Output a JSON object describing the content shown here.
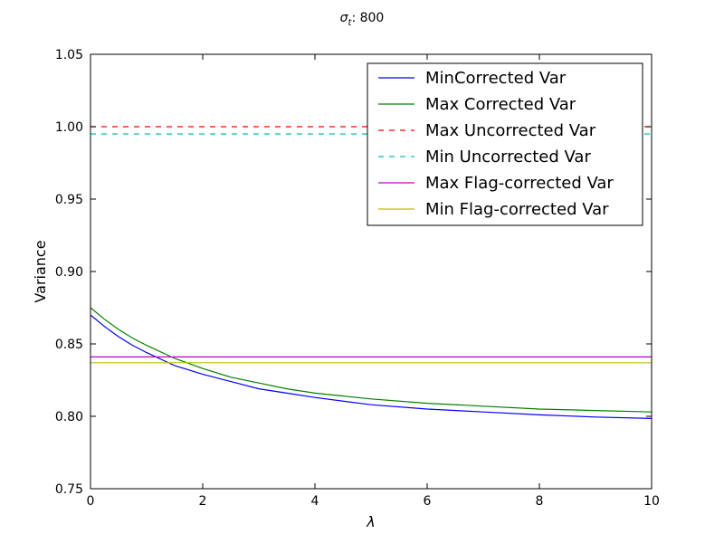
{
  "chart_data": {
    "type": "line",
    "title_sym": "σ",
    "title_sub": "t",
    "title_rest": ": 800",
    "xlabel": "λ",
    "ylabel": "Variance",
    "xlim": [
      0,
      10
    ],
    "ylim": [
      0.75,
      1.05
    ],
    "xticks": [
      0,
      2,
      4,
      6,
      8,
      10
    ],
    "xtick_labels": [
      "0",
      "2",
      "4",
      "6",
      "8",
      "10"
    ],
    "yticks": [
      0.75,
      0.8,
      0.85,
      0.9,
      0.95,
      1.0,
      1.05
    ],
    "ytick_labels": [
      "0.75",
      "0.80",
      "0.85",
      "0.90",
      "0.95",
      "1.00",
      "1.05"
    ],
    "grid": false,
    "legend_position": "top-right",
    "series": [
      {
        "name": "MinCorrected Var",
        "color": "#0000ff",
        "dash": "solid",
        "x": [
          0,
          0.25,
          0.5,
          0.75,
          1,
          1.5,
          2,
          2.5,
          3,
          3.5,
          4,
          5,
          6,
          7,
          8,
          9,
          10
        ],
        "y": [
          0.87,
          0.862,
          0.855,
          0.849,
          0.844,
          0.835,
          0.829,
          0.824,
          0.819,
          0.816,
          0.813,
          0.808,
          0.805,
          0.803,
          0.801,
          0.7995,
          0.7985
        ]
      },
      {
        "name": "Max Corrected Var",
        "color": "#008000",
        "dash": "solid",
        "x": [
          0,
          0.25,
          0.5,
          0.75,
          1,
          1.5,
          2,
          2.5,
          3,
          3.5,
          4,
          5,
          6,
          7,
          8,
          9,
          10
        ],
        "y": [
          0.875,
          0.867,
          0.86,
          0.854,
          0.849,
          0.84,
          0.833,
          0.827,
          0.823,
          0.819,
          0.816,
          0.812,
          0.809,
          0.807,
          0.805,
          0.804,
          0.803
        ]
      },
      {
        "name": "Max Uncorrected Var",
        "color": "#ff0000",
        "dash": "dashed",
        "x": [
          0,
          10
        ],
        "y": [
          1.0,
          1.0
        ]
      },
      {
        "name": "Min Uncorrected Var",
        "color": "#00bfbf",
        "dash": "dashed",
        "x": [
          0,
          10
        ],
        "y": [
          0.995,
          0.995
        ]
      },
      {
        "name": "Max Flag-corrected Var",
        "color": "#bf00bf",
        "dash": "solid",
        "x": [
          0,
          10
        ],
        "y": [
          0.841,
          0.841
        ]
      },
      {
        "name": "Min Flag-corrected Var",
        "color": "#bfbf00",
        "dash": "solid",
        "x": [
          0,
          10
        ],
        "y": [
          0.837,
          0.837
        ]
      }
    ]
  }
}
